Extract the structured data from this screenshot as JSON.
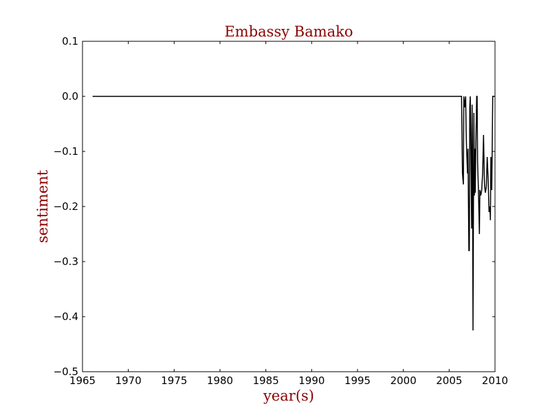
{
  "colors": {
    "title": "#8b0000",
    "axis_label": "#8b0000",
    "line": "#000000",
    "frame": "#000000",
    "background": "#ffffff"
  },
  "chart_data": {
    "type": "line",
    "title": "Embassy Bamako",
    "xlabel": "year(s)",
    "ylabel": "sentiment",
    "xlim": [
      1965,
      2010
    ],
    "ylim": [
      -0.5,
      0.1
    ],
    "grid": false,
    "x_ticks": [
      1965,
      1970,
      1975,
      1980,
      1985,
      1990,
      1995,
      2000,
      2005,
      2010
    ],
    "y_ticks": [
      0.1,
      0.0,
      -0.1,
      -0.2,
      -0.3,
      -0.4,
      -0.5
    ],
    "x_tick_labels": [
      "1965",
      "1970",
      "1975",
      "1980",
      "1985",
      "1990",
      "1995",
      "2000",
      "2005",
      "2010"
    ],
    "y_tick_labels": [
      "0.1",
      "0.0",
      "−0.1",
      "−0.2",
      "−0.3",
      "−0.4",
      "−0.5"
    ],
    "series": [
      {
        "x": [
          1966.1,
          2006.2,
          2006.35,
          2006.45,
          2006.55,
          2006.6,
          2006.7,
          2006.8,
          2006.85,
          2006.9,
          2007.0,
          2007.05,
          2007.15,
          2007.2,
          2007.25,
          2007.3,
          2007.35,
          2007.45,
          2007.5,
          2007.55,
          2007.6,
          2007.65,
          2007.7,
          2007.75,
          2007.8,
          2007.85,
          2007.9,
          2008.0,
          2008.05,
          2008.1,
          2008.2,
          2008.3,
          2008.35,
          2008.45,
          2008.55,
          2008.65,
          2008.75,
          2008.85,
          2008.95,
          2009.05,
          2009.15,
          2009.25,
          2009.35,
          2009.45,
          2009.5,
          2009.55,
          2009.6,
          2009.65,
          2009.75,
          2009.8,
          2009.85,
          2009.9,
          2010.0
        ],
        "y": [
          0.0,
          0.0,
          0.0,
          -0.14,
          -0.16,
          0.0,
          -0.02,
          0.0,
          -0.06,
          -0.095,
          -0.14,
          -0.095,
          -0.28,
          -0.28,
          -0.02,
          0.0,
          -0.06,
          -0.24,
          -0.015,
          -0.1,
          -0.425,
          -0.2,
          -0.03,
          -0.18,
          -0.095,
          -0.175,
          -0.1,
          0.0,
          0.0,
          -0.12,
          -0.175,
          -0.25,
          -0.17,
          -0.18,
          -0.17,
          -0.14,
          -0.07,
          -0.16,
          -0.175,
          -0.165,
          -0.11,
          -0.15,
          -0.21,
          -0.2,
          -0.225,
          -0.11,
          -0.12,
          -0.17,
          0.0,
          0.0,
          0.0,
          0.0,
          0.0
        ]
      }
    ]
  }
}
